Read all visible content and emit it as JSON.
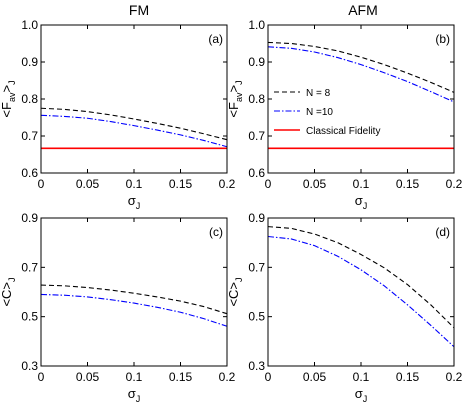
{
  "column_titles": [
    "FM",
    "AFM"
  ],
  "colors": {
    "n8": "#000000",
    "n10": "#0000ff",
    "classical": "#ff0000"
  },
  "chart_data": [
    {
      "type": "line",
      "panel_label": "(a)",
      "ylabel_main": "<F",
      "ylabel_sub": "av",
      "ylabel_after": ">",
      "ylabel_sub2": "J",
      "xlabel_main": "σ",
      "xlabel_sub": "J",
      "xlim": [
        0,
        0.2
      ],
      "ylim": [
        0.6,
        1.0
      ],
      "xticks": [
        0,
        0.05,
        0.1,
        0.15,
        0.2
      ],
      "xticklabels": [
        "0",
        "0.05",
        "0.1",
        "0.15",
        "0.2"
      ],
      "yticks": [
        0.6,
        0.7,
        0.8,
        0.9,
        1.0
      ],
      "yticklabels": [
        "0.6",
        "0.7",
        "0.8",
        "0.9",
        "1.0"
      ],
      "x": [
        0,
        0.025,
        0.05,
        0.075,
        0.1,
        0.125,
        0.15,
        0.175,
        0.2
      ],
      "series": [
        {
          "name": "N = 8",
          "style": "dashed",
          "color_key": "n8",
          "values": [
            0.775,
            0.772,
            0.766,
            0.757,
            0.746,
            0.734,
            0.721,
            0.706,
            0.69
          ]
        },
        {
          "name": "N =10",
          "style": "dashdot",
          "color_key": "n10",
          "values": [
            0.756,
            0.753,
            0.748,
            0.739,
            0.728,
            0.716,
            0.703,
            0.688,
            0.671
          ]
        },
        {
          "name": "Classical Fidelity",
          "style": "solid",
          "color_key": "classical",
          "values": [
            0.6667,
            0.6667,
            0.6667,
            0.6667,
            0.6667,
            0.6667,
            0.6667,
            0.6667,
            0.6667
          ]
        }
      ]
    },
    {
      "type": "line",
      "panel_label": "(b)",
      "ylabel_main": "<F",
      "ylabel_sub": "av",
      "ylabel_after": ">",
      "ylabel_sub2": "J",
      "xlabel_main": "σ",
      "xlabel_sub": "J",
      "xlim": [
        0,
        0.2
      ],
      "ylim": [
        0.6,
        1.0
      ],
      "xticks": [
        0,
        0.05,
        0.1,
        0.15,
        0.2
      ],
      "xticklabels": [
        "0",
        "0.05",
        "0.1",
        "0.15",
        "0.2"
      ],
      "yticks": [
        0.6,
        0.7,
        0.8,
        0.9,
        1.0
      ],
      "yticklabels": [
        "0.6",
        "0.7",
        "0.8",
        "0.9",
        "1.0"
      ],
      "x": [
        0,
        0.025,
        0.05,
        0.075,
        0.1,
        0.125,
        0.15,
        0.175,
        0.2
      ],
      "series": [
        {
          "name": "N = 8",
          "style": "dashed",
          "color_key": "n8",
          "values": [
            0.953,
            0.95,
            0.942,
            0.93,
            0.913,
            0.893,
            0.87,
            0.845,
            0.818
          ]
        },
        {
          "name": "N =10",
          "style": "dashdot",
          "color_key": "n10",
          "values": [
            0.941,
            0.937,
            0.927,
            0.912,
            0.893,
            0.871,
            0.847,
            0.82,
            0.792
          ]
        },
        {
          "name": "Classical Fidelity",
          "style": "solid",
          "color_key": "classical",
          "values": [
            0.6667,
            0.6667,
            0.6667,
            0.6667,
            0.6667,
            0.6667,
            0.6667,
            0.6667,
            0.6667
          ]
        }
      ],
      "legend": {
        "placement": "center-right",
        "entries": [
          "N = 8",
          "N =10",
          "Classical Fidelity"
        ]
      }
    },
    {
      "type": "line",
      "panel_label": "(c)",
      "ylabel_main": "<C",
      "ylabel_sub": "",
      "ylabel_after": ">",
      "ylabel_sub2": "J",
      "xlabel_main": "σ",
      "xlabel_sub": "J",
      "xlim": [
        0,
        0.2
      ],
      "ylim": [
        0.3,
        0.9
      ],
      "xticks": [
        0,
        0.05,
        0.1,
        0.15,
        0.2
      ],
      "xticklabels": [
        "0",
        "0.05",
        "0.1",
        "0.15",
        "0.2"
      ],
      "yticks": [
        0.3,
        0.5,
        0.7,
        0.9
      ],
      "yticklabels": [
        "0.3",
        "0.5",
        "0.7",
        "0.9"
      ],
      "x": [
        0,
        0.025,
        0.05,
        0.075,
        0.1,
        0.125,
        0.15,
        0.175,
        0.2
      ],
      "series": [
        {
          "name": "N = 8",
          "style": "dashed",
          "color_key": "n8",
          "values": [
            0.628,
            0.625,
            0.618,
            0.608,
            0.595,
            0.58,
            0.563,
            0.541,
            0.512
          ]
        },
        {
          "name": "N =10",
          "style": "dashdot",
          "color_key": "n10",
          "values": [
            0.59,
            0.587,
            0.58,
            0.569,
            0.555,
            0.538,
            0.518,
            0.492,
            0.461
          ]
        }
      ]
    },
    {
      "type": "line",
      "panel_label": "(d)",
      "ylabel_main": "<C",
      "ylabel_sub": "",
      "ylabel_after": ">",
      "ylabel_sub2": "J",
      "xlabel_main": "σ",
      "xlabel_sub": "J",
      "xlim": [
        0,
        0.2
      ],
      "ylim": [
        0.3,
        0.9
      ],
      "xticks": [
        0,
        0.05,
        0.1,
        0.15,
        0.2
      ],
      "xticklabels": [
        "0",
        "0.05",
        "0.1",
        "0.15",
        "0.2"
      ],
      "yticks": [
        0.3,
        0.5,
        0.7,
        0.9
      ],
      "yticklabels": [
        "0.3",
        "0.5",
        "0.7",
        "0.9"
      ],
      "x": [
        0,
        0.025,
        0.05,
        0.075,
        0.1,
        0.125,
        0.15,
        0.175,
        0.2
      ],
      "series": [
        {
          "name": "N = 8",
          "style": "dashed",
          "color_key": "n8",
          "values": [
            0.865,
            0.858,
            0.835,
            0.8,
            0.752,
            0.698,
            0.63,
            0.548,
            0.455
          ]
        },
        {
          "name": "N =10",
          "style": "dashdot",
          "color_key": "n10",
          "values": [
            0.825,
            0.815,
            0.788,
            0.745,
            0.69,
            0.625,
            0.548,
            0.465,
            0.378
          ]
        }
      ]
    }
  ]
}
